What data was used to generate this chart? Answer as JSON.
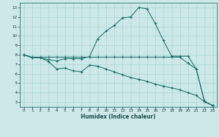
{
  "xlabel": "Humidex (Indice chaleur)",
  "bg_color": "#cde8e8",
  "grid_color": "#9ecece",
  "line_color": "#1a6e6a",
  "xlim": [
    -0.5,
    23.5
  ],
  "ylim": [
    2.5,
    13.5
  ],
  "xticks": [
    0,
    1,
    2,
    3,
    4,
    5,
    6,
    7,
    8,
    9,
    10,
    11,
    12,
    13,
    14,
    15,
    16,
    17,
    18,
    19,
    20,
    21,
    22,
    23
  ],
  "yticks": [
    3,
    4,
    5,
    6,
    7,
    8,
    9,
    10,
    11,
    12,
    13
  ],
  "line1_x": [
    0,
    1,
    2,
    3,
    4,
    5,
    6,
    7,
    8,
    9,
    10,
    11,
    12,
    13,
    14,
    15,
    16,
    17,
    18,
    19,
    20,
    21,
    22,
    23
  ],
  "line1_y": [
    8.0,
    7.7,
    7.7,
    7.5,
    7.35,
    7.6,
    7.6,
    7.6,
    7.8,
    9.7,
    10.5,
    11.1,
    11.9,
    12.0,
    13.0,
    12.85,
    11.3,
    9.5,
    7.85,
    7.85,
    7.85,
    6.5,
    3.05,
    2.65
  ],
  "line2_x": [
    0,
    1,
    2,
    3,
    4,
    5,
    6,
    7,
    8,
    9,
    10,
    11,
    12,
    13,
    14,
    15,
    16,
    17,
    18,
    19,
    20,
    21,
    22,
    23
  ],
  "line2_y": [
    8.0,
    7.75,
    7.75,
    7.75,
    7.75,
    7.75,
    7.75,
    7.75,
    7.75,
    7.75,
    7.75,
    7.75,
    7.75,
    7.75,
    7.75,
    7.75,
    7.75,
    7.75,
    7.75,
    7.75,
    7.1,
    6.5,
    3.05,
    2.65
  ],
  "line3_x": [
    0,
    1,
    2,
    3,
    4,
    5,
    6,
    7,
    8,
    9,
    10,
    11,
    12,
    13,
    14,
    15,
    16,
    17,
    18,
    19,
    20,
    21,
    22,
    23
  ],
  "line3_y": [
    8.0,
    7.7,
    7.7,
    7.3,
    6.5,
    6.6,
    6.3,
    6.2,
    6.9,
    6.8,
    6.5,
    6.2,
    5.9,
    5.6,
    5.4,
    5.2,
    4.9,
    4.7,
    4.5,
    4.3,
    4.0,
    3.7,
    3.05,
    2.65
  ]
}
